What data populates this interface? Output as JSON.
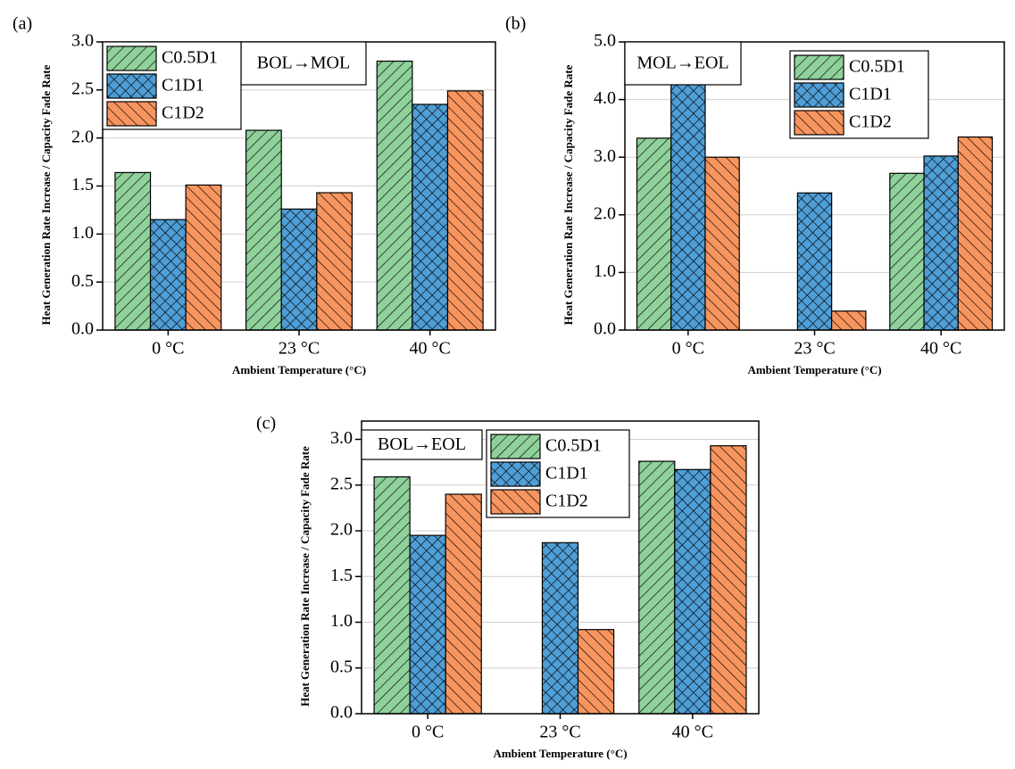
{
  "chart_data": [
    {
      "type": "bar",
      "title": "(a)",
      "annotation": "BOL→MOL",
      "ylabel": "Heat Generation Rate Increase / Capacity Fade Rate",
      "xlabel": "Ambient Temperature (°C)",
      "categories": [
        "0 °C",
        "23 °C",
        "40 °C"
      ],
      "series": [
        {
          "name": "C0.5D1",
          "color": "#8fd19b",
          "values": [
            1.64,
            2.08,
            2.8
          ]
        },
        {
          "name": "C1D1",
          "color": "#4f9ed6",
          "values": [
            1.15,
            1.26,
            2.35
          ]
        },
        {
          "name": "C1D2",
          "color": "#f8955f",
          "values": [
            1.51,
            1.43,
            2.49
          ]
        }
      ],
      "ylim": [
        0,
        3
      ],
      "yticks": [
        {
          "value": 0,
          "label": "0.0"
        },
        0.5,
        {
          "value": 1,
          "label": "1.0"
        },
        1.5,
        {
          "value": 2,
          "label": "2.0"
        },
        2.5,
        {
          "value": 3,
          "label": "3.0"
        }
      ],
      "grid": true
    },
    {
      "type": "bar",
      "title": "(b)",
      "annotation": "MOL→EOL",
      "ylabel": "Heat Generation Rate Increase / Capacity Fade Rate",
      "xlabel": "Ambient Temperature (°C)",
      "categories": [
        "0 °C",
        "23 °C",
        "40 °C"
      ],
      "series": [
        {
          "name": "C0.5D1",
          "color": "#8fd19b",
          "values": [
            3.33,
            0,
            2.72
          ]
        },
        {
          "name": "C1D1",
          "color": "#4f9ed6",
          "values": [
            4.33,
            2.38,
            3.02
          ]
        },
        {
          "name": "C1D2",
          "color": "#f8955f",
          "values": [
            3.0,
            0.33,
            3.35
          ]
        }
      ],
      "ylim": [
        0,
        5
      ],
      "yticks": [
        {
          "value": 0,
          "label": "0.0"
        },
        {
          "value": 1,
          "label": "1.0"
        },
        {
          "value": 2,
          "label": "2.0"
        },
        {
          "value": 3,
          "label": "3.0"
        },
        {
          "value": 4,
          "label": "4.0"
        },
        {
          "value": 5,
          "label": "5.0"
        }
      ],
      "grid": true
    },
    {
      "type": "bar",
      "title": "(c)",
      "annotation": "BOL→EOL",
      "ylabel": "Heat Generation Rate Increase / Capacity Fade Rate",
      "xlabel": "Ambient Temperature (°C)",
      "categories": [
        "0 °C",
        "23 °C",
        "40 °C"
      ],
      "series": [
        {
          "name": "C0.5D1",
          "color": "#8fd19b",
          "values": [
            2.59,
            0,
            2.76
          ]
        },
        {
          "name": "C1D1",
          "color": "#4f9ed6",
          "values": [
            1.95,
            1.87,
            2.67
          ]
        },
        {
          "name": "C1D2",
          "color": "#f8955f",
          "values": [
            2.4,
            0.92,
            2.93
          ]
        }
      ],
      "ylim": [
        0,
        3.2
      ],
      "yticks": [
        {
          "value": 0,
          "label": "0.0"
        },
        0.5,
        {
          "value": 1,
          "label": "1.0"
        },
        1.5,
        {
          "value": 2,
          "label": "2.0"
        },
        2.5,
        {
          "value": 3,
          "label": "3.0"
        }
      ],
      "grid": true
    }
  ]
}
